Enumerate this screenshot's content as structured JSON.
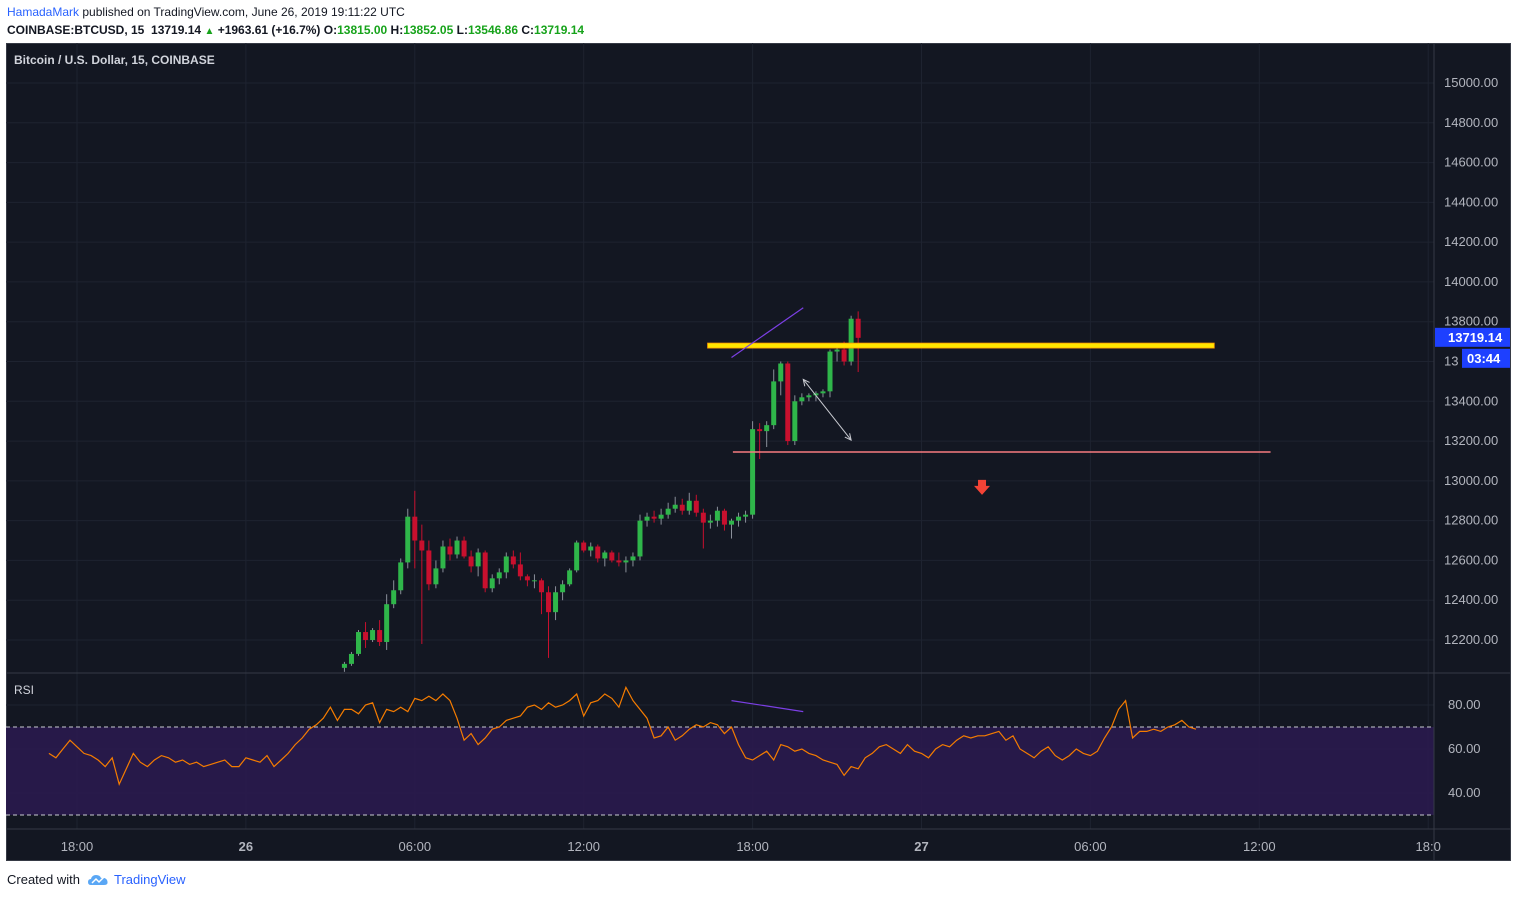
{
  "header": {
    "author": "HamadaMark",
    "published_text": "published on TradingView.com, June 26, 2019 19:11:22 UTC"
  },
  "symbol_line": {
    "symbol": "COINBASE:BTCUSD, 15",
    "last": "13719.14",
    "change_arrow": "▲",
    "change": "+1963.61 (+16.7%)",
    "o_label": "O:",
    "o": "13815.00",
    "h_label": "H:",
    "h": "13852.05",
    "l_label": "L:",
    "l": "13546.86",
    "c_label": "C:",
    "c": "13719.14"
  },
  "footer": {
    "created_with": "Created with",
    "brand": "TradingView",
    "logo_icon": "tradingview-cloud-icon"
  },
  "colors": {
    "background": "#131722",
    "up": "#26a69a",
    "up_candle": "#2fb64a",
    "down_candle": "#c8102e",
    "resistance_line": "#ffe600",
    "support_line": "#f77c80",
    "rsi_line": "#f57c00",
    "rsi_band": "#2a1a4e",
    "trendline": "#7b3fe4",
    "price_tag": "#2196f3",
    "arrow_down": "#f44336"
  },
  "chart_data": {
    "type": "candlestick",
    "title": "Bitcoin / U.S. Dollar, 15, COINBASE",
    "y_ticks": [
      "15000.00",
      "14800.00",
      "14600.00",
      "14400.00",
      "14200.00",
      "14000.00",
      "13800.00",
      "13400.00",
      "13200.00",
      "13000.00",
      "12800.00",
      "12600.00",
      "12400.00",
      "12200.00"
    ],
    "ylim": [
      12050,
      15100
    ],
    "x_ticks": [
      {
        "label": "18:00",
        "hour": 18
      },
      {
        "label": "26",
        "hour": 24
      },
      {
        "label": "06:00",
        "hour": 30
      },
      {
        "label": "12:00",
        "hour": 36
      },
      {
        "label": "18:00",
        "hour": 42
      },
      {
        "label": "27",
        "hour": 48
      },
      {
        "label": "06:00",
        "hour": 54
      },
      {
        "label": "12:00",
        "hour": 60
      },
      {
        "label": "18:0",
        "hour": 66
      }
    ],
    "time_unit": "hours since June 25 00:00 UTC",
    "last_price_tag": "13719.14",
    "countdown_tag": "03:44",
    "hidden_price_label": "13",
    "candles_start_hour": 27.5,
    "candle_interval_minutes": 15,
    "ohlc": [
      [
        12060,
        12090,
        12040,
        12080
      ],
      [
        12080,
        12140,
        12070,
        12130
      ],
      [
        12130,
        12250,
        12120,
        12240
      ],
      [
        12240,
        12290,
        12160,
        12200
      ],
      [
        12200,
        12260,
        12190,
        12250
      ],
      [
        12250,
        12300,
        12170,
        12190
      ],
      [
        12190,
        12430,
        12150,
        12380
      ],
      [
        12380,
        12500,
        12360,
        12450
      ],
      [
        12450,
        12610,
        12430,
        12590
      ],
      [
        12590,
        12860,
        12560,
        12820
      ],
      [
        12820,
        12950,
        12560,
        12700
      ],
      [
        12700,
        12780,
        12180,
        12650
      ],
      [
        12650,
        12700,
        12450,
        12480
      ],
      [
        12480,
        12600,
        12460,
        12560
      ],
      [
        12560,
        12700,
        12540,
        12670
      ],
      [
        12670,
        12710,
        12600,
        12630
      ],
      [
        12630,
        12720,
        12610,
        12700
      ],
      [
        12700,
        12720,
        12610,
        12620
      ],
      [
        12620,
        12650,
        12540,
        12570
      ],
      [
        12570,
        12660,
        12520,
        12640
      ],
      [
        12640,
        12650,
        12440,
        12460
      ],
      [
        12460,
        12530,
        12440,
        12510
      ],
      [
        12510,
        12560,
        12480,
        12540
      ],
      [
        12540,
        12640,
        12510,
        12620
      ],
      [
        12620,
        12650,
        12560,
        12580
      ],
      [
        12580,
        12640,
        12500,
        12520
      ],
      [
        12520,
        12530,
        12470,
        12500
      ],
      [
        12500,
        12530,
        12460,
        12500
      ],
      [
        12500,
        12510,
        12330,
        12440
      ],
      [
        12440,
        12470,
        12110,
        12340
      ],
      [
        12340,
        12470,
        12300,
        12440
      ],
      [
        12440,
        12500,
        12400,
        12480
      ],
      [
        12480,
        12560,
        12470,
        12550
      ],
      [
        12550,
        12700,
        12540,
        12690
      ],
      [
        12690,
        12700,
        12640,
        12650
      ],
      [
        12650,
        12690,
        12620,
        12670
      ],
      [
        12670,
        12680,
        12590,
        12610
      ],
      [
        12610,
        12650,
        12570,
        12640
      ],
      [
        12640,
        12650,
        12590,
        12600
      ],
      [
        12600,
        12640,
        12570,
        12590
      ],
      [
        12590,
        12620,
        12540,
        12600
      ],
      [
        12600,
        12640,
        12570,
        12620
      ],
      [
        12620,
        12830,
        12600,
        12800
      ],
      [
        12800,
        12840,
        12770,
        12820
      ],
      [
        12820,
        12850,
        12790,
        12810
      ],
      [
        12810,
        12860,
        12780,
        12830
      ],
      [
        12830,
        12890,
        12810,
        12860
      ],
      [
        12860,
        12920,
        12840,
        12880
      ],
      [
        12880,
        12910,
        12830,
        12850
      ],
      [
        12850,
        12940,
        12830,
        12900
      ],
      [
        12900,
        12930,
        12820,
        12840
      ],
      [
        12840,
        12860,
        12660,
        12790
      ],
      [
        12790,
        12830,
        12760,
        12800
      ],
      [
        12800,
        12870,
        12770,
        12850
      ],
      [
        12850,
        12860,
        12750,
        12780
      ],
      [
        12780,
        12810,
        12710,
        12800
      ],
      [
        12800,
        12840,
        12770,
        12820
      ],
      [
        12820,
        12850,
        12790,
        12830
      ],
      [
        12830,
        13300,
        12810,
        13260
      ],
      [
        13260,
        13290,
        13110,
        13250
      ],
      [
        13250,
        13300,
        13170,
        13280
      ],
      [
        13280,
        13560,
        13260,
        13500
      ],
      [
        13500,
        13600,
        13430,
        13590
      ],
      [
        13590,
        13600,
        13180,
        13200
      ],
      [
        13200,
        13430,
        13180,
        13400
      ],
      [
        13400,
        13440,
        13380,
        13420
      ],
      [
        13420,
        13440,
        13400,
        13430
      ],
      [
        13430,
        13450,
        13400,
        13440
      ],
      [
        13440,
        13460,
        13420,
        13450
      ],
      [
        13450,
        13660,
        13420,
        13650
      ],
      [
        13650,
        13680,
        13600,
        13660
      ],
      [
        13660,
        13700,
        13580,
        13600
      ],
      [
        13600,
        13830,
        13580,
        13815
      ],
      [
        13815,
        13852,
        13547,
        13719
      ]
    ],
    "annotations": [
      {
        "type": "horizontal-band",
        "price": 13680,
        "from_hour": 40.4,
        "to_hour": 58.4,
        "color": "#ffe600"
      },
      {
        "type": "horizontal-line",
        "price": 13145,
        "from_hour": 41.3,
        "to_hour": 60.4,
        "color": "#f77c80"
      },
      {
        "type": "trendline",
        "from": {
          "hour": 41.25,
          "price": 13620
        },
        "to": {
          "hour": 43.8,
          "price": 13870
        },
        "color": "#7b3fe4"
      },
      {
        "type": "double-arrow",
        "from": {
          "hour": 43.8,
          "price": 13510
        },
        "to": {
          "hour": 45.5,
          "price": 13205
        }
      },
      {
        "type": "arrow-down-marker",
        "hour": 50.15,
        "price": 12960,
        "color": "#f44336"
      }
    ],
    "rsi": {
      "label": "RSI",
      "y_ticks": [
        "80.00",
        "60.00",
        "40.00"
      ],
      "ylim": [
        27,
        91
      ],
      "upper_band": 70,
      "lower_band": 30,
      "values_start_hour": 17.0,
      "values_step_hours": 0.25,
      "values": [
        58,
        56,
        60,
        64,
        61,
        58,
        57,
        55,
        52,
        56,
        44,
        51,
        58,
        54,
        52,
        55,
        57,
        56,
        54,
        55,
        53,
        54,
        52,
        53,
        54,
        55,
        52,
        52,
        56,
        55,
        54,
        57,
        52,
        55,
        58,
        62,
        65,
        69,
        71,
        74,
        79,
        73,
        78,
        78,
        76,
        80,
        81,
        72,
        78,
        77,
        79,
        77,
        83,
        82,
        84,
        82,
        85,
        82,
        74,
        64,
        67,
        62,
        65,
        69,
        70,
        73,
        74,
        75,
        79,
        80,
        78,
        81,
        79,
        80,
        82,
        85,
        75,
        81,
        82,
        85,
        83,
        79,
        88,
        82,
        78,
        74,
        65,
        66,
        70,
        64,
        66,
        69,
        71,
        70,
        72,
        71,
        67,
        70,
        62,
        56,
        55,
        57,
        59,
        55,
        62,
        61,
        59,
        60,
        58,
        57,
        55,
        54,
        53,
        48,
        52,
        51,
        56,
        58,
        61,
        62,
        60,
        58,
        62,
        59,
        58,
        56,
        60,
        62,
        61,
        64,
        66,
        65,
        66,
        66,
        67,
        68,
        64,
        66,
        60,
        58,
        56,
        59,
        61,
        57,
        55,
        57,
        60,
        58,
        57,
        59,
        65,
        70,
        78,
        82,
        65,
        68,
        68,
        69,
        68,
        70,
        71,
        73,
        70,
        69
      ],
      "divergence_line": {
        "from": {
          "hour": 41.25,
          "value": 82
        },
        "to": {
          "hour": 43.8,
          "value": 77
        },
        "color": "#7b3fe4"
      }
    }
  }
}
